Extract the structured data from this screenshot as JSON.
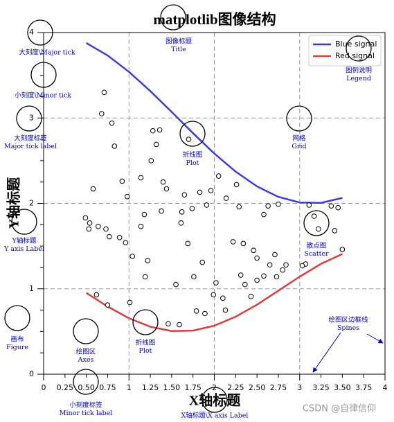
{
  "chart_data": {
    "type": "line",
    "title": "matplotlib图像结构",
    "xlabel": "X轴标题",
    "ylabel": "Y轴标题",
    "xlim": [
      0,
      4
    ],
    "ylim": [
      0,
      4
    ],
    "xticks": [
      0,
      1,
      2,
      3,
      4
    ],
    "xminorticks": [
      {
        "value": 0.25,
        "label": "0.25"
      },
      {
        "value": 0.5,
        "label": "0.50"
      },
      {
        "value": 0.75,
        "label": "0.75"
      },
      {
        "value": 1.25,
        "label": "1.25"
      },
      {
        "value": 1.5,
        "label": "1.50"
      },
      {
        "value": 1.75,
        "label": "1.75"
      },
      {
        "value": 2.25,
        "label": "2.25"
      },
      {
        "value": 2.5,
        "label": "2.50"
      },
      {
        "value": 2.75,
        "label": "2.75"
      },
      {
        "value": 3.25,
        "label": "3.25"
      },
      {
        "value": 3.5,
        "label": "3.50"
      },
      {
        "value": 3.75,
        "label": "3.75"
      }
    ],
    "yticks": [
      0,
      1,
      2,
      3,
      4
    ],
    "yminorticks": [
      0.25,
      0.5,
      0.75,
      1.25,
      1.5,
      1.75,
      2.25,
      2.5,
      2.75,
      3.25,
      3.5,
      3.75
    ],
    "grid": true,
    "legend": "upper right",
    "x": [
      0.5,
      0.75,
      1.0,
      1.25,
      1.5,
      1.75,
      2.0,
      2.25,
      2.5,
      2.75,
      3.0,
      3.25,
      3.5
    ],
    "series": [
      {
        "type": "line",
        "name": "Blue signal",
        "color": "#3b3be6",
        "values": [
          3.878,
          3.732,
          3.54,
          3.315,
          3.071,
          2.822,
          2.584,
          2.372,
          2.199,
          2.076,
          2.01,
          2.006,
          2.064
        ]
      },
      {
        "type": "line",
        "name": "Red signal",
        "color": "#e23b3b",
        "values": [
          0.952,
          0.792,
          0.655,
          0.555,
          0.505,
          0.51,
          0.568,
          0.673,
          0.814,
          0.977,
          1.142,
          1.292,
          1.408
        ]
      },
      {
        "type": "scatter",
        "color": "#000000",
        "x": [
          0.71,
          0.68,
          0.8,
          0.83,
          0.58,
          0.49,
          0.54,
          0.53,
          0.64,
          0.73,
          0.77,
          0.89,
          0.96,
          0.92,
          0.98,
          1.04,
          1.14,
          1.18,
          1.14,
          1.26,
          1.28,
          1.36,
          1.32,
          1.4,
          1.44,
          1.38,
          1.22,
          1.19,
          1.55,
          1.61,
          1.69,
          1.65,
          1.74,
          1.83,
          1.96,
          2.05,
          2.14,
          1.91,
          2.26,
          2.29,
          2.22,
          2.34,
          2.46,
          2.5,
          2.63,
          2.58,
          2.75,
          2.71,
          2.65,
          2.58,
          2.73,
          2.8,
          2.84,
          3.11,
          3.17,
          3.07,
          3.22,
          3.41,
          3.37,
          3.45,
          3.5,
          3.03,
          2.02,
          1.86,
          1.76,
          0.75,
          0.62,
          1.01,
          1.46,
          1.59,
          1.79,
          1.89,
          2.1,
          2.13,
          1.99,
          2.31,
          2.36,
          2.43,
          2.5,
          1.7,
          1.62
        ],
        "values": [
          3.3,
          3.05,
          2.94,
          2.67,
          2.17,
          1.83,
          1.77,
          1.7,
          1.73,
          1.7,
          1.61,
          1.6,
          1.54,
          2.26,
          2.08,
          1.38,
          1.73,
          1.87,
          2.3,
          2.5,
          2.85,
          2.86,
          2.69,
          2.25,
          2.17,
          1.91,
          1.33,
          1.14,
          1.05,
          1.77,
          1.53,
          2.1,
          1.94,
          2.13,
          2.15,
          2.32,
          2.06,
          1.98,
          2.22,
          1.96,
          1.55,
          1.53,
          1.45,
          1.36,
          1.97,
          1.87,
          1.99,
          1.4,
          1.28,
          1.15,
          1.14,
          1.22,
          1.28,
          1.98,
          1.85,
          1.29,
          1.7,
          1.68,
          1.97,
          1.95,
          1.46,
          1.27,
          1.07,
          1.31,
          1.14,
          0.81,
          0.93,
          0.84,
          0.59,
          0.58,
          0.74,
          0.71,
          0.89,
          0.75,
          0.93,
          1.16,
          1.05,
          0.91,
          1.1,
          2.75,
          1.9
        ]
      }
    ],
    "annotations": [
      {
        "lines": [
          "大刻度\\Major tick"
        ]
      },
      {
        "lines": [
          "小刻度\\Minor tick"
        ]
      },
      {
        "lines": [
          "大刻度标签",
          "Major tick label"
        ]
      },
      {
        "lines": [
          "图像标题",
          "Title"
        ]
      },
      {
        "lines": [
          "图例说明",
          "Legend"
        ]
      },
      {
        "lines": [
          "网格",
          "Grid"
        ]
      },
      {
        "lines": [
          "折线图",
          "Plot"
        ]
      },
      {
        "lines": [
          "Y轴标题",
          "Y axis Label"
        ]
      },
      {
        "lines": [
          "散点图",
          "Scatter"
        ]
      },
      {
        "lines": [
          "画布",
          "Figure"
        ]
      },
      {
        "lines": [
          "绘图区",
          "Axes"
        ]
      },
      {
        "lines": [
          "折线图",
          "Plot"
        ]
      },
      {
        "lines": [
          "绘图区边框线",
          "Spines"
        ]
      },
      {
        "lines": [
          "小刻度标签",
          "Minor tick label"
        ]
      },
      {
        "lines": [
          "X轴标题\\X axis Label"
        ]
      }
    ],
    "watermark": "CSDN @自律信仰"
  }
}
